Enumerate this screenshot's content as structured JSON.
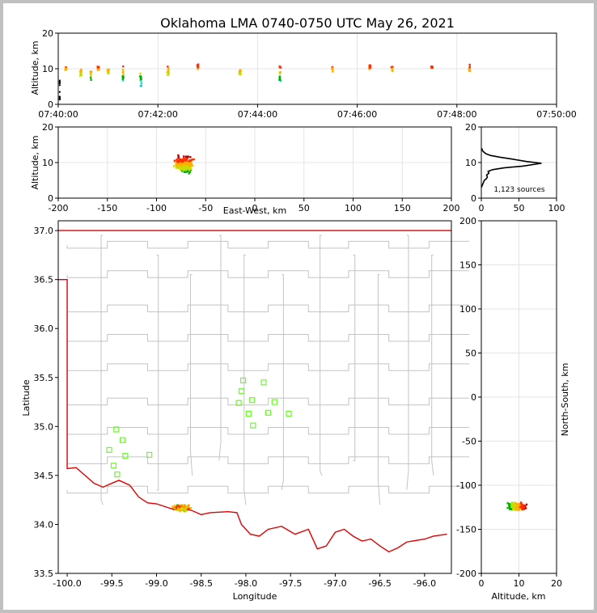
{
  "chart_data": {
    "title": "Oklahoma LMA 0740-0750 UTC May 26, 2021",
    "source_count_label": "1,123 sources",
    "colors": {
      "border": "#e00000",
      "county": "#c4c4c4",
      "station": "#66ff22",
      "histogram": "#000000"
    },
    "point_palette": [
      "#0000ff",
      "#00c0ff",
      "#00e6c8",
      "#00b000",
      "#c8dc00",
      "#ffb000",
      "#ff3000",
      "#c00000",
      "#000000"
    ],
    "time_panel": {
      "type": "scatter",
      "ylabel": "Altitude, km",
      "xticks": [
        "07:40:00",
        "07:42:00",
        "07:44:00",
        "07:46:00",
        "07:48:00",
        "07:50:00"
      ],
      "xlim_minutes": [
        0,
        10
      ],
      "ylim": [
        0,
        20
      ],
      "yticks": [
        0,
        10,
        20
      ],
      "clusters": [
        {
          "t": 0.15,
          "alt": 10.0,
          "spread": 1.0
        },
        {
          "t": 0.45,
          "alt": 9.0,
          "spread": 2.5
        },
        {
          "t": 0.65,
          "alt": 8.5,
          "spread": 2.5
        },
        {
          "t": 0.8,
          "alt": 10.0,
          "spread": 1.0
        },
        {
          "t": 1.0,
          "alt": 9.5,
          "spread": 1.0
        },
        {
          "t": 1.3,
          "alt": 8.0,
          "spread": 3.0
        },
        {
          "t": 1.65,
          "alt": 7.5,
          "spread": 3.5
        },
        {
          "t": 2.2,
          "alt": 9.0,
          "spread": 2.5
        },
        {
          "t": 2.8,
          "alt": 10.5,
          "spread": 1.0
        },
        {
          "t": 3.65,
          "alt": 9.0,
          "spread": 1.5
        },
        {
          "t": 4.45,
          "alt": 8.0,
          "spread": 3.5
        },
        {
          "t": 5.5,
          "alt": 10.0,
          "spread": 1.0
        },
        {
          "t": 6.25,
          "alt": 10.5,
          "spread": 1.0
        },
        {
          "t": 6.7,
          "alt": 10.0,
          "spread": 1.0
        },
        {
          "t": 7.5,
          "alt": 10.5,
          "spread": 0.5
        },
        {
          "t": 8.25,
          "alt": 10.0,
          "spread": 1.5
        }
      ]
    },
    "ew_panel": {
      "type": "scatter",
      "xlabel": "East-West, km",
      "ylabel": "Altitude, km",
      "xlim": [
        -200,
        200
      ],
      "xticks": [
        -200,
        -150,
        -100,
        -50,
        0,
        50,
        100,
        150,
        200
      ],
      "ylim": [
        0,
        20
      ],
      "yticks": [
        0,
        10,
        20
      ],
      "cluster": {
        "x_center": -72,
        "x_spread": 12,
        "alt_center": 9.5,
        "alt_spread": 3
      }
    },
    "hist_panel": {
      "type": "line",
      "xlim": [
        0,
        100
      ],
      "xticks": [
        0,
        50,
        100
      ],
      "ylim": [
        0,
        20
      ],
      "yticks": [
        0,
        10,
        20
      ],
      "counts": [
        [
          0,
          3
        ],
        [
          2,
          4
        ],
        [
          4,
          5
        ],
        [
          7,
          5.5
        ],
        [
          8,
          6
        ],
        [
          7,
          6.5
        ],
        [
          10,
          7
        ],
        [
          9,
          7.5
        ],
        [
          15,
          8
        ],
        [
          30,
          8.5
        ],
        [
          55,
          9
        ],
        [
          80,
          9.8
        ],
        [
          60,
          10.3
        ],
        [
          40,
          11
        ],
        [
          25,
          11.5
        ],
        [
          12,
          12
        ],
        [
          6,
          12.5
        ],
        [
          3,
          13
        ],
        [
          1,
          13.5
        ],
        [
          1,
          14
        ]
      ]
    },
    "map_panel": {
      "type": "scatter",
      "xlabel": "Longitude",
      "ylabel": "Latitude",
      "xlim": [
        -100.1,
        -95.7
      ],
      "xticks": [
        -100.0,
        -99.5,
        -99.0,
        -98.5,
        -98.0,
        -97.5,
        -97.0,
        -96.5,
        -96.0
      ],
      "ylim": [
        33.5,
        37.1
      ],
      "yticks": [
        33.5,
        34.0,
        34.5,
        35.0,
        35.5,
        36.0,
        36.5,
        37.0
      ],
      "xtick_labels": [
        "-100.0",
        "-99.5",
        "-99.0",
        "-98.5",
        "-98.0",
        "-97.5",
        "-97.0",
        "-96.5",
        "-96.0"
      ],
      "ytick_labels": [
        "33.5",
        "34.0",
        "34.5",
        "35.0",
        "35.5",
        "36.0",
        "36.5",
        "37.0"
      ],
      "stations": [
        [
          -99.45,
          34.97
        ],
        [
          -99.38,
          34.86
        ],
        [
          -99.53,
          34.76
        ],
        [
          -99.35,
          34.7
        ],
        [
          -99.48,
          34.6
        ],
        [
          -99.44,
          34.51
        ],
        [
          -99.08,
          34.71
        ],
        [
          -98.03,
          35.47
        ],
        [
          -97.8,
          35.45
        ],
        [
          -98.05,
          35.36
        ],
        [
          -97.93,
          35.27
        ],
        [
          -98.08,
          35.24
        ],
        [
          -97.68,
          35.25
        ],
        [
          -97.97,
          35.13
        ],
        [
          -97.75,
          35.14
        ],
        [
          -97.52,
          35.13
        ],
        [
          -97.92,
          35.01
        ]
      ],
      "cluster": {
        "lon_center": -98.72,
        "lon_spread": 0.12,
        "lat_center": 34.17,
        "lat_spread": 0.04
      }
    },
    "ns_panel": {
      "type": "scatter",
      "xlabel": "Altitude, km",
      "ylabel": "North-South, km",
      "xlim": [
        0,
        20
      ],
      "xticks": [
        0,
        10,
        20
      ],
      "ylim": [
        -200,
        200
      ],
      "yticks": [
        -200,
        -150,
        -100,
        -50,
        0,
        50,
        100,
        150,
        200
      ],
      "cluster": {
        "alt_center": 9.5,
        "alt_spread": 3,
        "ns_center": -124,
        "ns_spread": 6
      }
    }
  }
}
